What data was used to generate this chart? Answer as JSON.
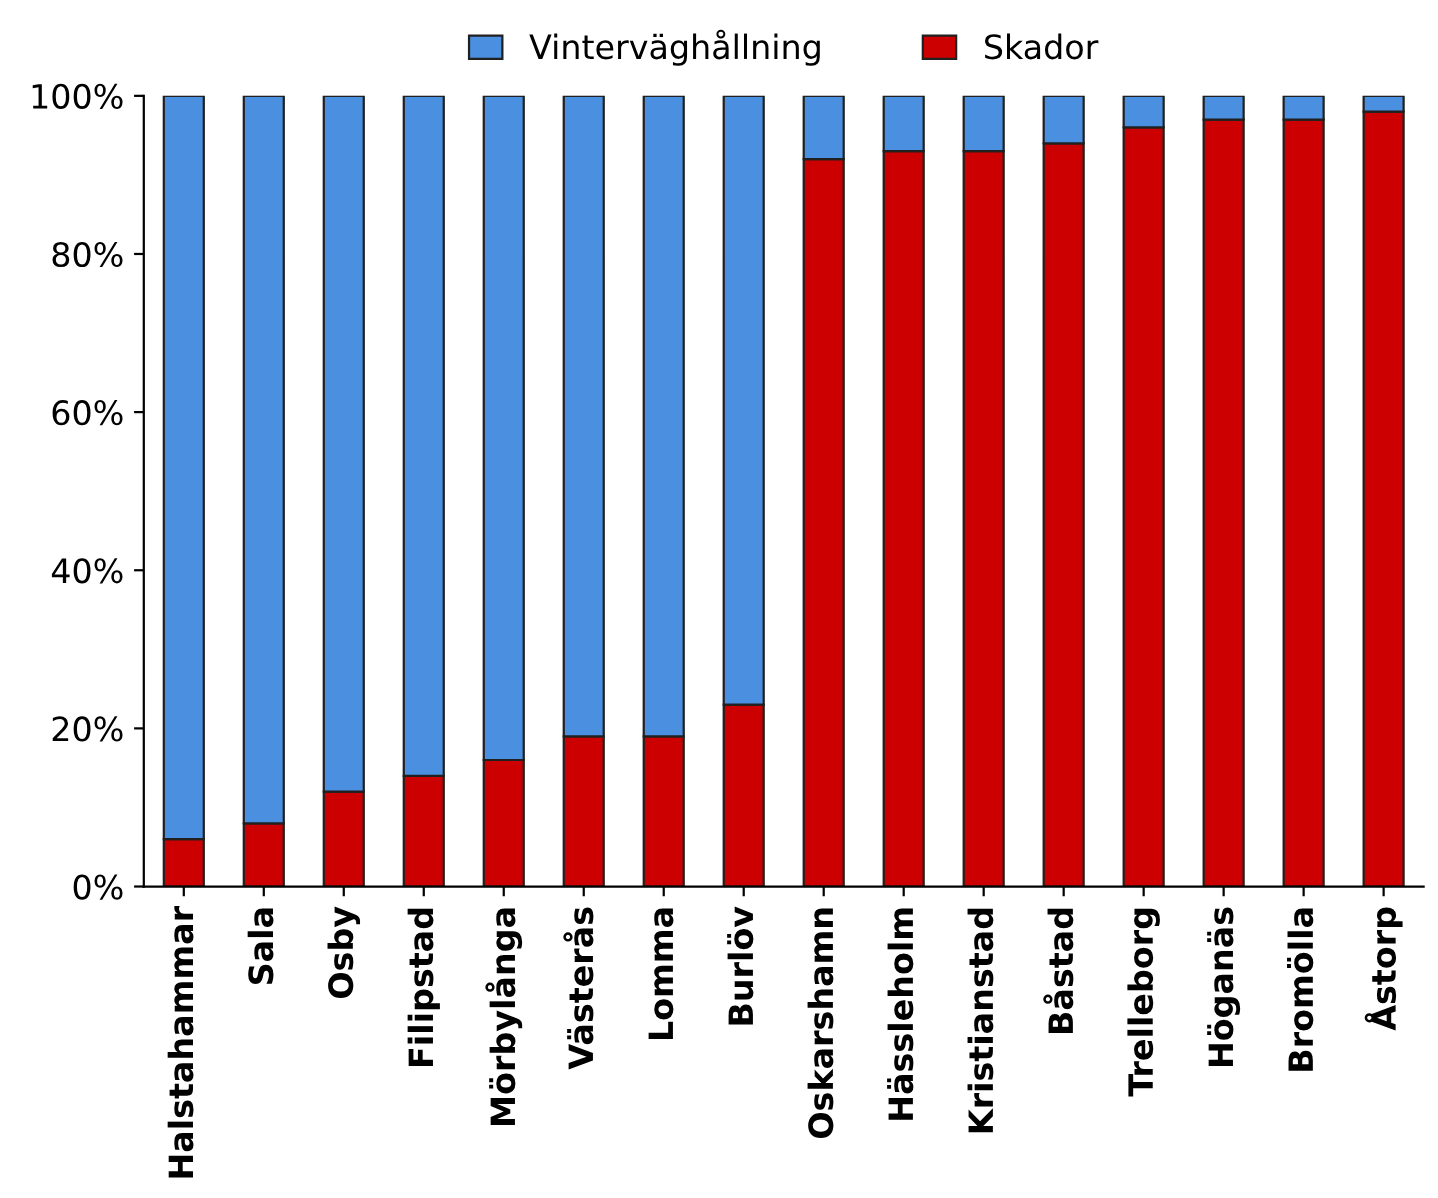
{
  "chart_data": {
    "type": "bar",
    "stacked": true,
    "categories": [
      "Halstahammar",
      "Sala",
      "Osby",
      "Filipstad",
      "Mörbylånga",
      "Västerås",
      "Lomma",
      "Burlöv",
      "Oskarshamn",
      "Hässleholm",
      "Kristianstad",
      "Båstad",
      "Trelleborg",
      "Höganäs",
      "Bromölla",
      "Åstorp"
    ],
    "series": [
      {
        "name": "Skador",
        "color": "#cc0000",
        "values": [
          6,
          8,
          12,
          14,
          16,
          19,
          19,
          23,
          92,
          93,
          93,
          94,
          96,
          97,
          97,
          98
        ]
      },
      {
        "name": "Vinterväghållning",
        "color": "#4a8fe0",
        "values": [
          94,
          92,
          88,
          86,
          84,
          81,
          81,
          77,
          8,
          7,
          7,
          6,
          4,
          3,
          3,
          2
        ]
      }
    ],
    "ylim": [
      0,
      100
    ],
    "yticks": [
      {
        "value": 0,
        "label": "0%"
      },
      {
        "value": 20,
        "label": "20%"
      },
      {
        "value": 40,
        "label": "40%"
      },
      {
        "value": 60,
        "label": "60%"
      },
      {
        "value": 80,
        "label": "80%"
      },
      {
        "value": 100,
        "label": "100%"
      }
    ],
    "grid": false,
    "legend": "top"
  }
}
